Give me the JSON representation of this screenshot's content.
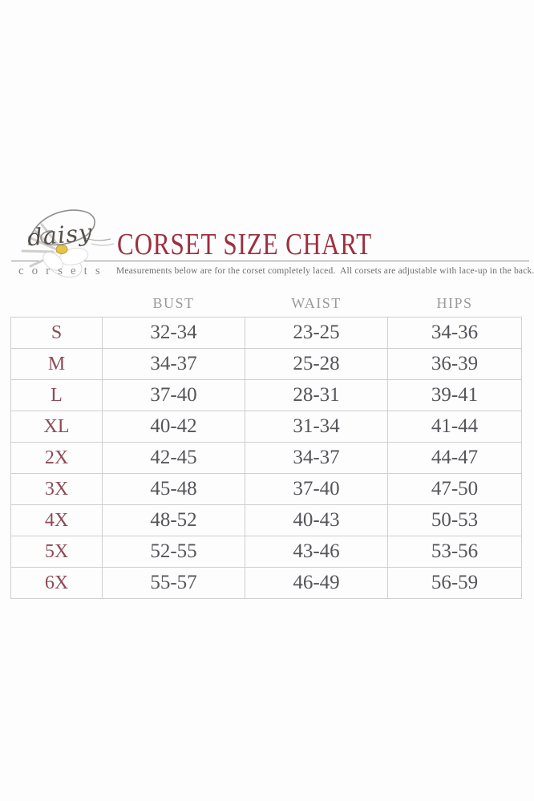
{
  "logo": {
    "brand_script": "daisy",
    "brand_word": "corsets"
  },
  "header": {
    "title": "CORSET SIZE CHART",
    "subtitle": "Measurements below are for the corset completely laced.  All corsets are adjustable with lace-up in the back."
  },
  "chart_data": {
    "type": "table",
    "title": "CORSET SIZE CHART",
    "columns": [
      "BUST",
      "WAIST",
      "HIPS"
    ],
    "row_label_column": "",
    "rows": [
      [
        "S",
        "32-34",
        "23-25",
        "34-36"
      ],
      [
        "M",
        "34-37",
        "25-28",
        "36-39"
      ],
      [
        "L",
        "37-40",
        "28-31",
        "39-41"
      ],
      [
        "XL",
        "40-42",
        "31-34",
        "41-44"
      ],
      [
        "2X",
        "42-45",
        "34-37",
        "44-47"
      ],
      [
        "3X",
        "45-48",
        "37-40",
        "47-50"
      ],
      [
        "4X",
        "48-52",
        "40-43",
        "50-53"
      ],
      [
        "5X",
        "52-55",
        "43-46",
        "53-56"
      ],
      [
        "6X",
        "55-57",
        "46-49",
        "56-59"
      ]
    ],
    "units": "inches",
    "layout": {
      "grid": true,
      "header_row_outside_borders": true
    }
  },
  "colors": {
    "title": "#9d2f3f",
    "size_label": "#8d4b55",
    "value_text": "#55555a",
    "column_header": "#9a9a9a",
    "table_border": "#cfcfcf",
    "rule_line": "#8f8f8f",
    "subtitle_text": "#6e6e6e",
    "brand_script_text": "#56504a",
    "brand_word_text": "#8a8a8a",
    "flower_center": "#e7c34a"
  }
}
